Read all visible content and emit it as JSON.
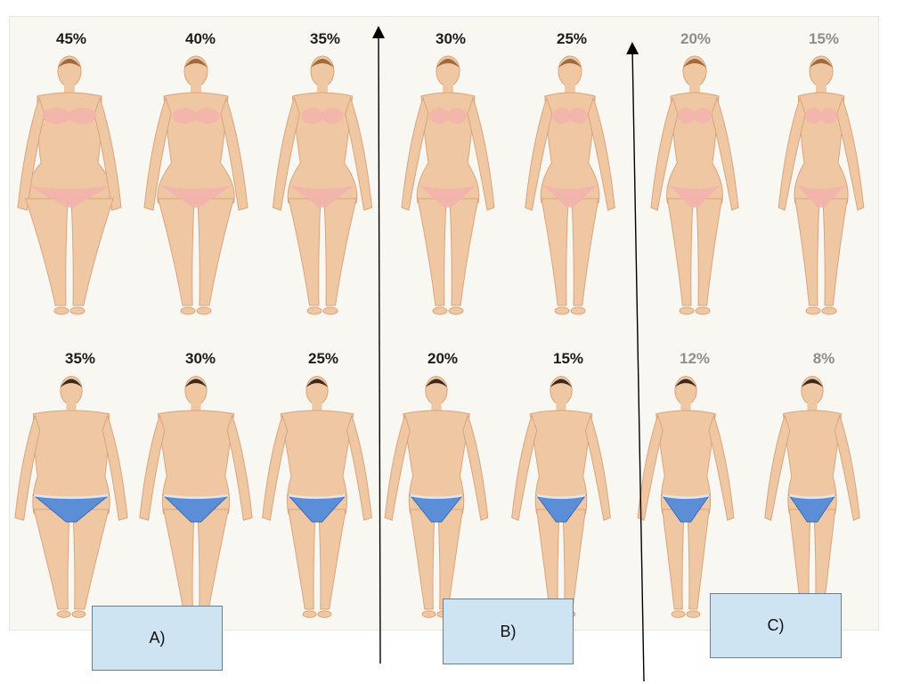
{
  "women": {
    "labels": [
      "45%",
      "40%",
      "35%",
      "30%",
      "25%",
      "20%",
      "15%"
    ],
    "figure_name": "female-body-figure"
  },
  "men": {
    "labels": [
      "35%",
      "30%",
      "25%",
      "20%",
      "15%",
      "12%",
      "8%"
    ],
    "figure_name": "male-body-figure"
  },
  "boxes": {
    "a": "A)",
    "b": "B)",
    "c": "C)"
  },
  "colors": {
    "skin": "#efc8a3",
    "skin_shadow": "#d9a47c",
    "bikini": "#f2b3ad",
    "briefs": "#5b8ed6",
    "box_fill": "#cfe4f2",
    "panel": "#f8f7f2"
  }
}
